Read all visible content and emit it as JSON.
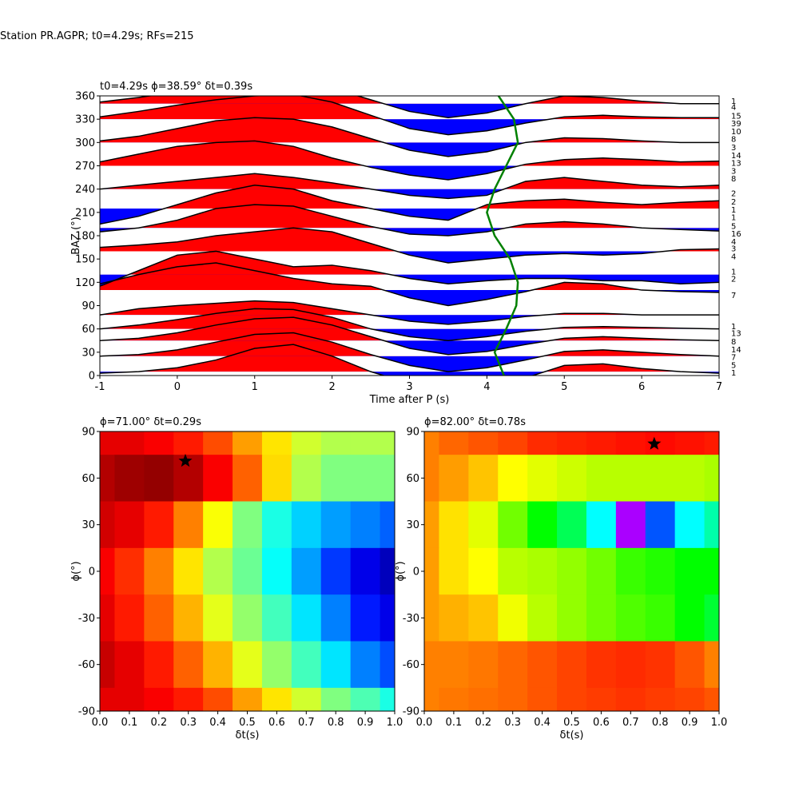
{
  "title": "Station PR.AGPR; t0=4.29s; RFs=215",
  "chart_data": [
    {
      "type": "waveform",
      "title": "t0=4.29s ϕ=38.59° δt=0.39s",
      "x_label": "Time after P (s)",
      "y_label": "BAZ (°)",
      "xlim": [
        -1,
        7
      ],
      "ylim": [
        0,
        360
      ],
      "xticks": [
        -1,
        0,
        1,
        2,
        3,
        4,
        5,
        6,
        7
      ],
      "yticks": [
        0,
        30,
        60,
        90,
        120,
        150,
        180,
        210,
        240,
        270,
        300,
        330,
        360
      ],
      "positive_color": "#ff0000",
      "negative_color": "#0000ff",
      "line_color": "#000000",
      "x": [
        -1,
        -0.5,
        0,
        0.5,
        1,
        1.5,
        2,
        2.5,
        3,
        3.5,
        4,
        4.5,
        5,
        5.5,
        6,
        6.5,
        7
      ],
      "traces": [
        {
          "baz": 5,
          "values": [
            -2,
            0,
            5,
            15,
            30,
            35,
            20,
            0,
            -15,
            -25,
            -20,
            -8,
            8,
            10,
            4,
            0,
            -2
          ]
        },
        {
          "baz": 25,
          "values": [
            0,
            2,
            8,
            18,
            28,
            30,
            18,
            2,
            -12,
            -20,
            -15,
            -5,
            6,
            8,
            5,
            2,
            0
          ]
        },
        {
          "baz": 45,
          "values": [
            0,
            3,
            10,
            20,
            28,
            30,
            20,
            5,
            -10,
            -18,
            -14,
            -5,
            3,
            5,
            3,
            1,
            0
          ]
        },
        {
          "baz": 60,
          "values": [
            0,
            5,
            12,
            20,
            26,
            25,
            15,
            0,
            -10,
            -15,
            -10,
            -3,
            2,
            3,
            2,
            1,
            0
          ]
        },
        {
          "baz": 78,
          "values": [
            0,
            8,
            12,
            15,
            18,
            16,
            8,
            0,
            -8,
            -12,
            -8,
            -2,
            2,
            2,
            0,
            0,
            0
          ]
        },
        {
          "baz": 110,
          "values": [
            8,
            20,
            30,
            35,
            25,
            15,
            8,
            5,
            -10,
            -20,
            -12,
            -2,
            10,
            8,
            0,
            -2,
            -3
          ]
        },
        {
          "baz": 130,
          "values": [
            -15,
            5,
            25,
            30,
            20,
            10,
            12,
            5,
            -5,
            -12,
            -8,
            -5,
            -5,
            -8,
            -8,
            -12,
            -10
          ]
        },
        {
          "baz": 160,
          "values": [
            5,
            8,
            12,
            20,
            25,
            30,
            25,
            10,
            -5,
            -15,
            -10,
            -5,
            -3,
            -5,
            -3,
            2,
            3
          ]
        },
        {
          "baz": 190,
          "values": [
            -5,
            0,
            10,
            25,
            30,
            28,
            15,
            2,
            -8,
            -10,
            -5,
            5,
            8,
            5,
            0,
            -2,
            -4
          ]
        },
        {
          "baz": 215,
          "values": [
            -20,
            -10,
            5,
            20,
            30,
            25,
            10,
            0,
            -10,
            -15,
            5,
            10,
            12,
            8,
            5,
            8,
            10
          ]
        },
        {
          "baz": 240,
          "values": [
            0,
            5,
            10,
            15,
            20,
            15,
            8,
            0,
            -8,
            -12,
            -8,
            10,
            15,
            10,
            5,
            3,
            5
          ]
        },
        {
          "baz": 270,
          "values": [
            5,
            15,
            25,
            30,
            32,
            25,
            10,
            -2,
            -12,
            -18,
            -10,
            2,
            8,
            10,
            8,
            5,
            6
          ]
        },
        {
          "baz": 300,
          "values": [
            2,
            8,
            18,
            28,
            32,
            30,
            20,
            5,
            -10,
            -18,
            -12,
            0,
            6,
            5,
            2,
            0,
            0
          ]
        },
        {
          "baz": 330,
          "values": [
            3,
            10,
            18,
            25,
            30,
            32,
            22,
            5,
            -12,
            -20,
            -15,
            -5,
            3,
            5,
            3,
            2,
            2
          ]
        },
        {
          "baz": 350,
          "values": [
            2,
            8,
            15,
            20,
            22,
            25,
            20,
            5,
            -10,
            -18,
            -12,
            0,
            10,
            8,
            3,
            0,
            0
          ]
        }
      ],
      "t0_curve": {
        "color": "#008000",
        "x": [
          4.22,
          4.1,
          4.25,
          4.38,
          4.4,
          4.3,
          4.1,
          4.0,
          4.1,
          4.25,
          4.4,
          4.35,
          4.15
        ],
        "baz": [
          0,
          30,
          60,
          90,
          120,
          150,
          180,
          210,
          240,
          270,
          300,
          330,
          360
        ]
      },
      "count_labels": {
        "baz": [
          354,
          346,
          335,
          325,
          315,
          305,
          294,
          284,
          274,
          264,
          254,
          235,
          224,
          214,
          204,
          193,
          183,
          173,
          164,
          154,
          134,
          125,
          104,
          64,
          55,
          44,
          34,
          24,
          14,
          4
        ],
        "labels": [
          "1",
          "4",
          "15",
          "39",
          "10",
          "8",
          "3",
          "14",
          "13",
          "3",
          "8",
          "2",
          "2",
          "1",
          "1",
          "5",
          "16",
          "4",
          "3",
          "4",
          "1",
          "2",
          "7",
          "1",
          "13",
          "8",
          "14",
          "7",
          "5",
          "1"
        ]
      }
    },
    {
      "type": "heatmap",
      "title": "ϕ=71.00° δt=0.29s",
      "x_label": "δt(s)",
      "y_label": "ϕ(°)",
      "xlim": [
        0,
        1
      ],
      "ylim": [
        -90,
        90
      ],
      "xticks": [
        {
          "value": 0,
          "label": "0.0"
        },
        0.1,
        0.2,
        0.3,
        0.4,
        0.5,
        0.6,
        0.7,
        0.8,
        0.9,
        {
          "value": 1,
          "label": "1.0"
        }
      ],
      "yticks": [
        -90,
        -60,
        -30,
        0,
        30,
        60,
        90
      ],
      "dt": [
        0,
        0.1,
        0.2,
        0.3,
        0.4,
        0.5,
        0.6,
        0.7,
        0.8,
        0.9,
        1
      ],
      "phi": [
        90,
        60,
        30,
        0,
        -30,
        -60,
        -90
      ],
      "z": [
        [
          0.9,
          0.9,
          0.88,
          0.85,
          0.8,
          0.72,
          0.65,
          0.58,
          0.55,
          0.55,
          0.55
        ],
        [
          0.95,
          0.97,
          0.98,
          0.95,
          0.88,
          0.78,
          0.66,
          0.55,
          0.5,
          0.5,
          0.5
        ],
        [
          0.92,
          0.9,
          0.85,
          0.75,
          0.62,
          0.5,
          0.4,
          0.33,
          0.28,
          0.25,
          0.22
        ],
        [
          0.88,
          0.83,
          0.75,
          0.65,
          0.55,
          0.48,
          0.38,
          0.28,
          0.18,
          0.1,
          0.05
        ],
        [
          0.9,
          0.85,
          0.78,
          0.7,
          0.6,
          0.52,
          0.44,
          0.35,
          0.25,
          0.15,
          0.1
        ],
        [
          0.93,
          0.9,
          0.85,
          0.78,
          0.7,
          0.6,
          0.52,
          0.44,
          0.35,
          0.25,
          0.2
        ],
        [
          0.9,
          0.9,
          0.88,
          0.85,
          0.8,
          0.72,
          0.65,
          0.58,
          0.5,
          0.45,
          0.4
        ]
      ],
      "colormap": [
        [
          0,
          "#00008f"
        ],
        [
          0.125,
          "#0000ff"
        ],
        [
          0.375,
          "#00ffff"
        ],
        [
          0.625,
          "#ffff00"
        ],
        [
          0.875,
          "#ff0000"
        ],
        [
          1,
          "#800000"
        ]
      ],
      "marker": {
        "x": 0.29,
        "y": 71
      }
    },
    {
      "type": "heatmap",
      "title": "ϕ=82.00° δt=0.78s",
      "x_label": "δt(s)",
      "y_label": "ϕ(°)",
      "xlim": [
        0,
        1
      ],
      "ylim": [
        -90,
        90
      ],
      "xticks": [
        {
          "value": 0,
          "label": "0.0"
        },
        0.1,
        0.2,
        0.3,
        0.4,
        0.5,
        0.6,
        0.7,
        0.8,
        0.9,
        {
          "value": 1,
          "label": "1.0"
        }
      ],
      "yticks": [
        -90,
        -60,
        -30,
        0,
        30,
        60,
        90
      ],
      "dt": [
        0,
        0.1,
        0.2,
        0.3,
        0.4,
        0.5,
        0.6,
        0.7,
        0.8,
        0.9,
        1
      ],
      "phi": [
        90,
        60,
        30,
        0,
        -30,
        -60,
        -90
      ],
      "z": [
        [
          0.85,
          0.88,
          0.9,
          0.92,
          0.95,
          0.96,
          0.97,
          0.98,
          0.99,
          0.98,
          0.97
        ],
        [
          0.85,
          0.82,
          0.78,
          0.72,
          0.68,
          0.65,
          0.62,
          0.62,
          0.62,
          0.62,
          0.6
        ],
        [
          0.82,
          0.75,
          0.68,
          0.55,
          0.45,
          0.4,
          0.3,
          0.05,
          0.2,
          0.3,
          0.35
        ],
        [
          0.82,
          0.75,
          0.72,
          0.62,
          0.6,
          0.58,
          0.55,
          0.5,
          0.48,
          0.45,
          0.45
        ],
        [
          0.82,
          0.8,
          0.78,
          0.7,
          0.62,
          0.58,
          0.55,
          0.52,
          0.5,
          0.45,
          0.42
        ],
        [
          0.85,
          0.85,
          0.86,
          0.88,
          0.9,
          0.92,
          0.94,
          0.95,
          0.94,
          0.9,
          0.85
        ],
        [
          0.85,
          0.86,
          0.87,
          0.88,
          0.9,
          0.92,
          0.93,
          0.94,
          0.93,
          0.92,
          0.9
        ]
      ],
      "colormap": [
        [
          0,
          "#ff00ff"
        ],
        [
          0.15,
          "#0000ff"
        ],
        [
          0.3,
          "#00ffff"
        ],
        [
          0.45,
          "#00ff00"
        ],
        [
          0.6,
          "#aaff00"
        ],
        [
          0.72,
          "#ffff00"
        ],
        [
          0.85,
          "#ff8000"
        ],
        [
          1,
          "#ff0000"
        ]
      ],
      "marker": {
        "x": 0.78,
        "y": 82
      }
    }
  ]
}
